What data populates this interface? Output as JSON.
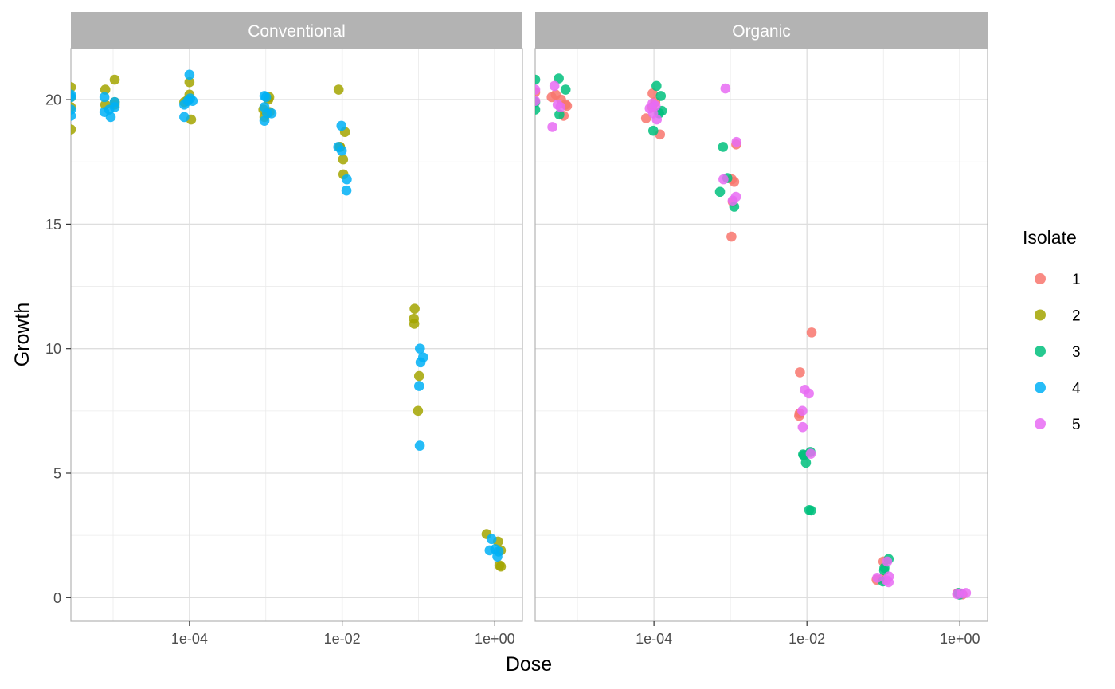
{
  "chart_data": {
    "type": "scatter",
    "xlabel": "Dose",
    "ylabel": "Growth",
    "x_scale": "log10",
    "xlim": [
      2.8e-06,
      2.3
    ],
    "ylim": [
      -0.95,
      22.05
    ],
    "y_ticks": [
      0,
      5,
      10,
      15,
      20
    ],
    "y_tick_labels": [
      "0",
      "5",
      "10",
      "15",
      "20"
    ],
    "x_ticks": [
      0.0001,
      0.01,
      1
    ],
    "x_tick_labels": [
      "1e-04",
      "1e-02",
      "1e+00"
    ],
    "grid": true,
    "legend": {
      "title": "Isolate",
      "position": "right",
      "entries": [
        {
          "label": "1",
          "color": "#F8766D"
        },
        {
          "label": "2",
          "color": "#A3A500"
        },
        {
          "label": "3",
          "color": "#00BF7D"
        },
        {
          "label": "4",
          "color": "#00B0F6"
        },
        {
          "label": "5",
          "color": "#E76BF3"
        }
      ]
    },
    "panels": [
      {
        "title": "Conventional",
        "series": [
          {
            "name": "2",
            "color": "#A3A500",
            "points": [
              [
                2.8e-06,
                20.5
              ],
              [
                2.8e-06,
                18.8
              ],
              [
                2.8e-06,
                20.1
              ],
              [
                2.8e-06,
                19.7
              ],
              [
                7.9e-06,
                20.4
              ],
              [
                7.9e-06,
                19.8
              ],
              [
                1.05e-05,
                20.8
              ],
              [
                1.05e-05,
                19.8
              ],
              [
                1.05e-05,
                19.9
              ],
              [
                0.0001,
                20.2
              ],
              [
                0.0001,
                20.7
              ],
              [
                0.000105,
                19.2
              ],
              [
                8.55e-05,
                19.9
              ],
              [
                9.5e-05,
                20.0
              ],
              [
                0.00108,
                20.0
              ],
              [
                0.00096,
                19.3
              ],
              [
                0.00111,
                20.1
              ],
              [
                0.00093,
                19.6
              ],
              [
                0.00112,
                19.5
              ],
              [
                0.009,
                20.4
              ],
              [
                0.0093,
                18.1
              ],
              [
                0.0109,
                18.7
              ],
              [
                0.0103,
                17.6
              ],
              [
                0.0104,
                17.0
              ],
              [
                0.0094,
                18.1
              ],
              [
                0.089,
                11.6
              ],
              [
                0.087,
                11.2
              ],
              [
                0.088,
                11.0
              ],
              [
                0.102,
                8.9
              ],
              [
                0.0985,
                7.5
              ],
              [
                0.78,
                2.55
              ],
              [
                1.1,
                2.25
              ],
              [
                1.2,
                1.9
              ],
              [
                1.15,
                1.3
              ],
              [
                1.2,
                1.25
              ]
            ]
          },
          {
            "name": "4",
            "color": "#00B0F6",
            "points": [
              [
                2.8e-06,
                20.2
              ],
              [
                2.8e-06,
                19.6
              ],
              [
                2.8e-06,
                20.1
              ],
              [
                2.8e-06,
                19.35
              ],
              [
                7.7e-06,
                20.1
              ],
              [
                7.7e-06,
                19.5
              ],
              [
                8.9e-06,
                19.6
              ],
              [
                9.3e-06,
                19.3
              ],
              [
                1.05e-05,
                19.9
              ],
              [
                1.05e-05,
                19.7
              ],
              [
                8.55e-05,
                19.3
              ],
              [
                8.55e-05,
                19.8
              ],
              [
                0.0001,
                21.0
              ],
              [
                9.5e-05,
                19.95
              ],
              [
                0.00011,
                19.95
              ],
              [
                0.000102,
                20.05
              ],
              [
                0.00096,
                20.15
              ],
              [
                0.00101,
                20.1
              ],
              [
                0.00096,
                19.7
              ],
              [
                0.00104,
                19.45
              ],
              [
                0.00096,
                19.15
              ],
              [
                0.00119,
                19.45
              ],
              [
                0.0089,
                18.1
              ],
              [
                0.0098,
                18.95
              ],
              [
                0.0099,
                17.95
              ],
              [
                0.0115,
                16.8
              ],
              [
                0.0114,
                16.35
              ],
              [
                0.1045,
                10.0
              ],
              [
                0.115,
                9.65
              ],
              [
                0.1065,
                9.45
              ],
              [
                0.102,
                8.5
              ],
              [
                0.104,
                6.1
              ],
              [
                0.905,
                2.35
              ],
              [
                0.855,
                1.9
              ],
              [
                1.01,
                1.95
              ],
              [
                1.12,
                1.85
              ],
              [
                1.08,
                1.65
              ]
            ]
          }
        ]
      },
      {
        "title": "Organic",
        "series": [
          {
            "name": "1",
            "color": "#F8766D",
            "points": [
              [
                2.8e-06,
                20.3
              ],
              [
                4.6e-06,
                20.1
              ],
              [
                5.2e-06,
                20.2
              ],
              [
                6.1e-06,
                20.0
              ],
              [
                6.6e-06,
                19.35
              ],
              [
                7e-06,
                19.8
              ],
              [
                7.3e-06,
                19.75
              ],
              [
                7.88e-05,
                19.25
              ],
              [
                9.6e-05,
                20.25
              ],
              [
                0.000104,
                19.9
              ],
              [
                0.00012,
                18.6
              ],
              [
                9.5e-05,
                19.7
              ],
              [
                0.00104,
                16.8
              ],
              [
                0.00112,
                16.7
              ],
              [
                0.00119,
                18.2
              ],
              [
                0.00103,
                14.5
              ],
              [
                0.00107,
                15.9
              ],
              [
                0.0081,
                9.05
              ],
              [
                0.008,
                7.4
              ],
              [
                0.0079,
                7.3
              ],
              [
                0.0115,
                10.65
              ],
              [
                0.0815,
                0.72
              ],
              [
                0.1,
                1.45
              ],
              [
                0.0965,
                0.75
              ],
              [
                0.93,
                0.18
              ],
              [
                1.08,
                0.13
              ]
            ]
          },
          {
            "name": "3",
            "color": "#00BF7D",
            "points": [
              [
                2.8e-06,
                20.8
              ],
              [
                2.8e-06,
                19.6
              ],
              [
                2.8e-06,
                19.9
              ],
              [
                5.7e-06,
                20.85
              ],
              [
                5.8e-06,
                19.4
              ],
              [
                7e-06,
                20.4
              ],
              [
                0.000108,
                20.55
              ],
              [
                0.000123,
                20.15
              ],
              [
                9.8e-05,
                18.75
              ],
              [
                0.000117,
                19.45
              ],
              [
                0.000127,
                19.55
              ],
              [
                0.0008,
                18.1
              ],
              [
                0.00073,
                16.3
              ],
              [
                0.00091,
                16.85
              ],
              [
                0.00112,
                15.7
              ],
              [
                0.0091,
                5.72
              ],
              [
                0.0089,
                5.75
              ],
              [
                0.0097,
                5.42
              ],
              [
                0.0111,
                5.85
              ],
              [
                0.0113,
                3.5
              ],
              [
                0.0107,
                3.52
              ],
              [
                0.103,
                1.2
              ],
              [
                0.117,
                1.55
              ],
              [
                0.0985,
                0.65
              ],
              [
                0.102,
                1.1
              ],
              [
                0.96,
                0.19
              ],
              [
                0.99,
                0.12
              ]
            ]
          },
          {
            "name": "5",
            "color": "#E76BF3",
            "points": [
              [
                2.8e-06,
                20.4
              ],
              [
                2.8e-06,
                19.95
              ],
              [
                5e-06,
                20.55
              ],
              [
                5.5e-06,
                19.8
              ],
              [
                6e-06,
                19.7
              ],
              [
                4.7e-06,
                18.9
              ],
              [
                8.8e-05,
                19.65
              ],
              [
                9.6e-05,
                19.85
              ],
              [
                0.000105,
                19.75
              ],
              [
                0.000109,
                19.2
              ],
              [
                9.75e-05,
                19.45
              ],
              [
                0.00081,
                16.8
              ],
              [
                0.00086,
                20.45
              ],
              [
                0.00107,
                15.95
              ],
              [
                0.00118,
                16.1
              ],
              [
                0.0012,
                18.3
              ],
              [
                0.0094,
                8.35
              ],
              [
                0.0087,
                7.5
              ],
              [
                0.0088,
                6.85
              ],
              [
                0.0106,
                8.2
              ],
              [
                0.0112,
                5.78
              ],
              [
                0.083,
                0.8
              ],
              [
                0.112,
                1.45
              ],
              [
                0.109,
                0.7
              ],
              [
                0.117,
                0.62
              ],
              [
                0.118,
                0.85
              ],
              [
                0.92,
                0.14
              ],
              [
                1.05,
                0.17
              ],
              [
                1.2,
                0.19
              ]
            ]
          }
        ]
      }
    ]
  }
}
